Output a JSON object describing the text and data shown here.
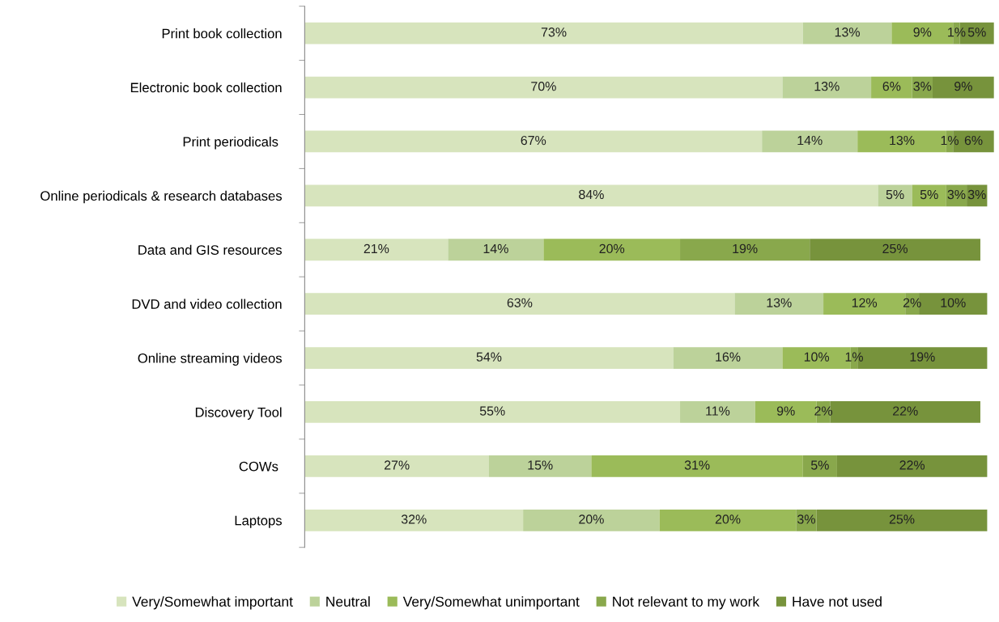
{
  "chart_data": {
    "type": "bar",
    "orientation": "horizontal",
    "stacked": true,
    "legend": "bottom",
    "grid": false,
    "categories": [
      "Print book collection",
      "Electronic book collection",
      "Print periodicals ",
      "Online periodicals & research databases",
      "Data and GIS resources",
      "DVD and video collection",
      "Online streaming videos",
      "Discovery Tool",
      "COWs ",
      "Laptops"
    ],
    "series": [
      {
        "name": "Very/Somewhat important",
        "color": "#d7e4bd",
        "values": [
          73,
          70,
          67,
          84,
          21,
          63,
          54,
          55,
          27,
          32
        ],
        "value_labels": [
          "73%",
          "70%",
          "67%",
          "84%",
          "21%",
          "63%",
          "54%",
          "55%",
          "27%",
          "32%"
        ]
      },
      {
        "name": "Neutral",
        "color": "#bcd29a",
        "values": [
          13,
          13,
          14,
          5,
          14,
          13,
          16,
          11,
          15,
          20
        ],
        "value_labels": [
          "13%",
          "13%",
          "14%",
          "5%",
          "14%",
          "13%",
          "16%",
          "11%",
          "15%",
          "20%"
        ]
      },
      {
        "name": "Very/Somewhat unimportant",
        "color": "#9bbb59",
        "values": [
          9,
          6,
          13,
          5,
          20,
          12,
          10,
          9,
          31,
          20
        ],
        "value_labels": [
          "9%",
          "6%",
          "13%",
          "5%",
          "20%",
          "12%",
          "10%",
          "9%",
          "31%",
          "20%"
        ]
      },
      {
        "name": "Not relevant to my work",
        "color": "#89a84c",
        "values": [
          1,
          3,
          1,
          3,
          19,
          2,
          1,
          2,
          5,
          3
        ],
        "value_labels": [
          "1%",
          "3%",
          "1%",
          "3%",
          "19%",
          "2%",
          "1%",
          "2%",
          "5%",
          "3%"
        ]
      },
      {
        "name": "Have not used",
        "color": "#77933c",
        "values": [
          5,
          9,
          6,
          3,
          25,
          10,
          19,
          22,
          22,
          25
        ],
        "value_labels": [
          "5%",
          "9%",
          "6%",
          "3%",
          "25%",
          "10%",
          "19%",
          "22%",
          "22%",
          "25%"
        ]
      }
    ]
  }
}
